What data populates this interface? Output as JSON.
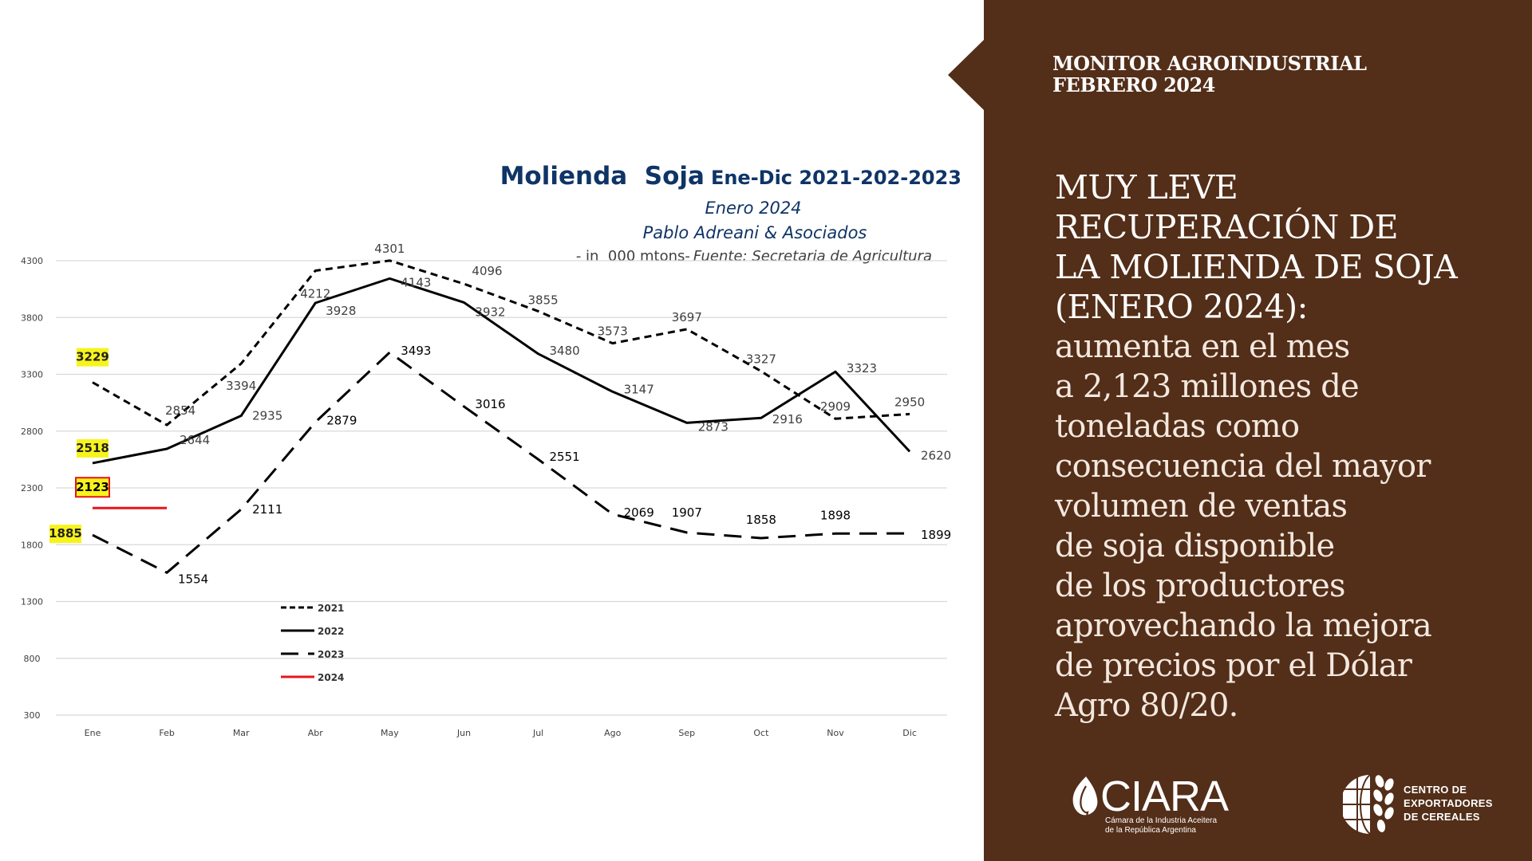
{
  "chart_data": {
    "type": "line",
    "title": "Molienda  Soja",
    "title_suffix": "Ene-Dic 2021-202-2023",
    "subtitle_1": "Enero 2024",
    "subtitle_2": "Pablo Adreani & Asociados",
    "source_prefix": "- in  000 mtons-",
    "source_italic": "Fuente: Secretaria de Agricultura",
    "xlabel": "",
    "ylabel": "",
    "categories": [
      "Ene",
      "Feb",
      "Mar",
      "Abr",
      "May",
      "Jun",
      "Jul",
      "Ago",
      "Sep",
      "Oct",
      "Nov",
      "Dic"
    ],
    "ylim": [
      300,
      4300
    ],
    "yticks": [
      4300,
      3800,
      3300,
      2800,
      2300,
      1800,
      1300,
      800,
      300
    ],
    "grid": true,
    "legend_position": "center-left",
    "series": [
      {
        "name": "2021",
        "style": "short-dash",
        "color": "#000000",
        "values": [
          3229,
          2854,
          3394,
          4212,
          4301,
          4096,
          3855,
          3573,
          3697,
          3327,
          2909,
          2950
        ]
      },
      {
        "name": "2022",
        "style": "solid",
        "color": "#000000",
        "values": [
          2518,
          2644,
          2935,
          3928,
          4143,
          3932,
          3480,
          3147,
          2873,
          2916,
          3323,
          2620
        ]
      },
      {
        "name": "2023",
        "style": "long-dash",
        "color": "#000000",
        "values": [
          1885,
          1554,
          2111,
          2879,
          3493,
          3016,
          2551,
          2069,
          1907,
          1858,
          1898,
          1899
        ]
      },
      {
        "name": "2024",
        "style": "solid",
        "color": "#e8141a",
        "values": [
          2123,
          2123
        ]
      }
    ],
    "highlighted_labels": [
      "3229",
      "2518",
      "2123",
      "1885"
    ],
    "highlight_color": "#f7f31c"
  },
  "panel": {
    "kicker_line1": "MONITOR AGROINDUSTRIAL",
    "kicker_line2": "FEBRERO 2024",
    "headline": [
      "MUY LEVE",
      "RECUPERACIÓN DE",
      "LA MOLIENDA DE SOJA",
      "(ENERO 2024):"
    ],
    "body": [
      "aumenta en el mes",
      "a 2,123 millones de",
      "toneladas como",
      "consecuencia del mayor",
      "volumen de ventas",
      "de soja disponible",
      "de los productores",
      "aprovechando la mejora",
      "de precios por el Dólar",
      "Agro 80/20."
    ],
    "background_color": "#532e18"
  },
  "logos": {
    "ciara_name": "CIARA",
    "ciara_sub1": "Cámara de la Industria Aceitera",
    "ciara_sub2": "de la República Argentina",
    "cec_line1": "CENTRO DE",
    "cec_line2": "EXPORTADORES",
    "cec_line3": "DE CEREALES"
  }
}
